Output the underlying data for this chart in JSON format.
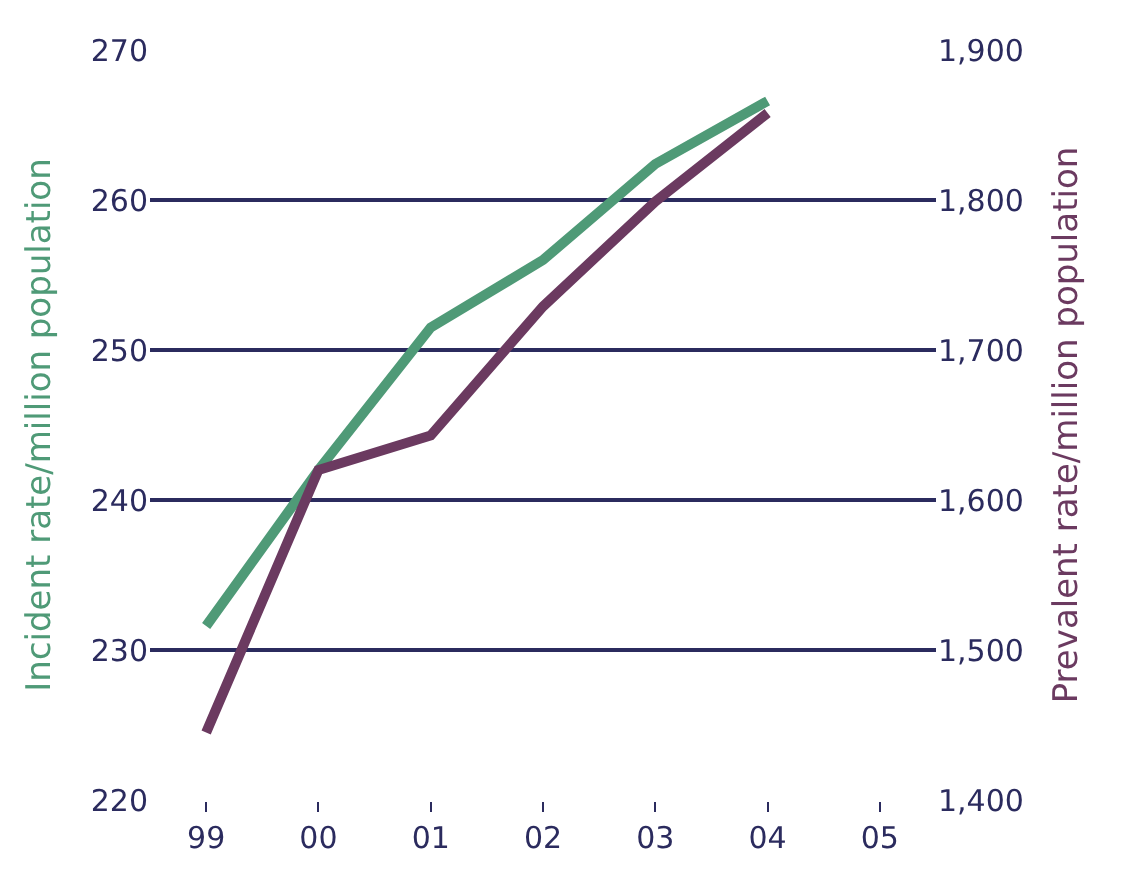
{
  "chart_data": {
    "type": "line",
    "categories": [
      "99",
      "00",
      "01",
      "02",
      "03",
      "04",
      "05"
    ],
    "ylabel": "Incident rate/million population",
    "y2label": "Prevalent rate/million population",
    "ylim": [
      220,
      270
    ],
    "yticks": [
      220,
      230,
      240,
      250,
      260,
      270
    ],
    "y2lim": [
      1400,
      1900
    ],
    "y2ticks": [
      {
        "value": 1400,
        "label": "1,400"
      },
      {
        "value": 1500,
        "label": "1,500"
      },
      {
        "value": 1600,
        "label": "1,600"
      },
      {
        "value": 1700,
        "label": "1,700"
      },
      {
        "value": 1800,
        "label": "1,800"
      },
      {
        "value": 1900,
        "label": "1,900"
      }
    ],
    "grid": "y",
    "legend": false,
    "marker": "none",
    "line_style": "solid",
    "series": [
      {
        "color": "#4f9a77",
        "values": [
          231.6,
          242,
          251.5,
          256,
          262.4,
          266.6,
          null
        ]
      },
      {
        "color": "#6b3a60",
        "axis": "y2",
        "values": [
          1445,
          1620,
          1643,
          1729,
          1799,
          1858,
          null
        ]
      }
    ]
  }
}
